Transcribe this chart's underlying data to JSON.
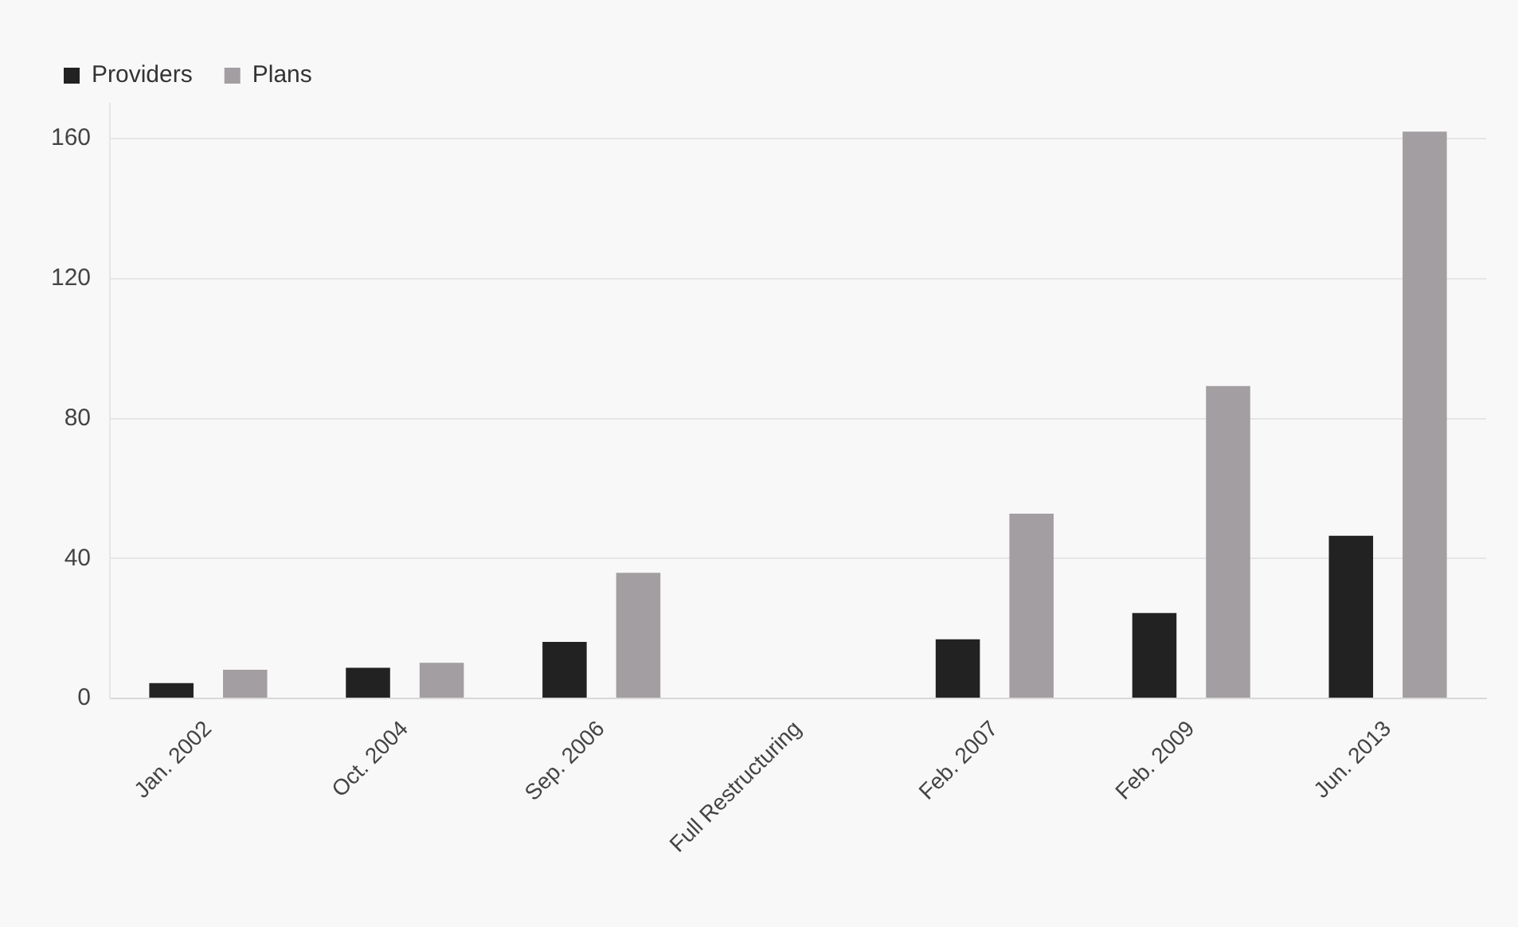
{
  "chart_data": {
    "type": "bar",
    "categories": [
      "Jan. 2002",
      "Oct. 2004",
      "Sep. 2006",
      "Full Restructuring",
      "Feb. 2007",
      "Feb. 2009",
      "Jun. 2013"
    ],
    "series": [
      {
        "name": "Providers",
        "color": "#222222",
        "values": [
          4.4,
          8.8,
          16.2,
          0,
          16.9,
          24.4,
          46.5
        ]
      },
      {
        "name": "Plans",
        "color": "#a39ea1",
        "values": [
          8.2,
          10.2,
          35.9,
          0,
          52.8,
          89.3,
          162
        ]
      }
    ],
    "ylim": [
      0,
      170
    ],
    "yticks": [
      0,
      40,
      80,
      120,
      160
    ],
    "grid": "y",
    "legend": "top left"
  }
}
